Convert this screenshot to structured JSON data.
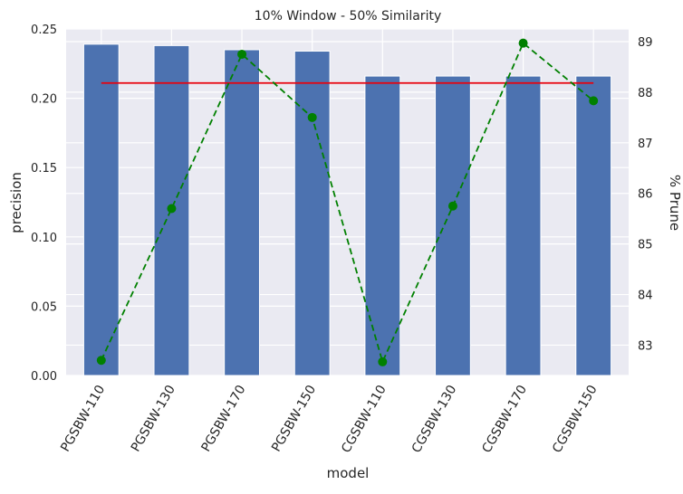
{
  "chart_data": {
    "type": "bar",
    "title": "10% Window - 50% Similarity",
    "xlabel": "model",
    "ylabel": "precision",
    "y2label": "% Prune",
    "categories": [
      "PGSBW-110",
      "PGSBW-130",
      "PGSBW-170",
      "PGSBW-150",
      "CGSBW-110",
      "CGSBW-130",
      "CGSBW-170",
      "CGSBW-150"
    ],
    "ylim": [
      0,
      0.25
    ],
    "y2lim": [
      82.4,
      89.25
    ],
    "yticks": [
      "0.00",
      "0.05",
      "0.10",
      "0.15",
      "0.20",
      "0.25"
    ],
    "y2ticks": [
      "83",
      "84",
      "85",
      "86",
      "87",
      "88",
      "89"
    ],
    "grid": true,
    "series": [
      {
        "kind": "bar",
        "axis": "left",
        "color": "#4c72b0",
        "values": [
          0.239,
          0.238,
          0.235,
          0.234,
          0.216,
          0.216,
          0.216,
          0.216
        ]
      },
      {
        "kind": "hline",
        "axis": "left",
        "color": "#e8000b",
        "values": [
          0.211,
          0.211,
          0.211,
          0.211,
          0.211,
          0.211,
          0.211,
          0.211
        ]
      },
      {
        "kind": "line-dashed-markers",
        "axis": "right",
        "color": "#008000",
        "values": [
          82.7,
          85.7,
          88.75,
          87.5,
          82.67,
          85.75,
          88.97,
          87.83
        ]
      }
    ]
  }
}
